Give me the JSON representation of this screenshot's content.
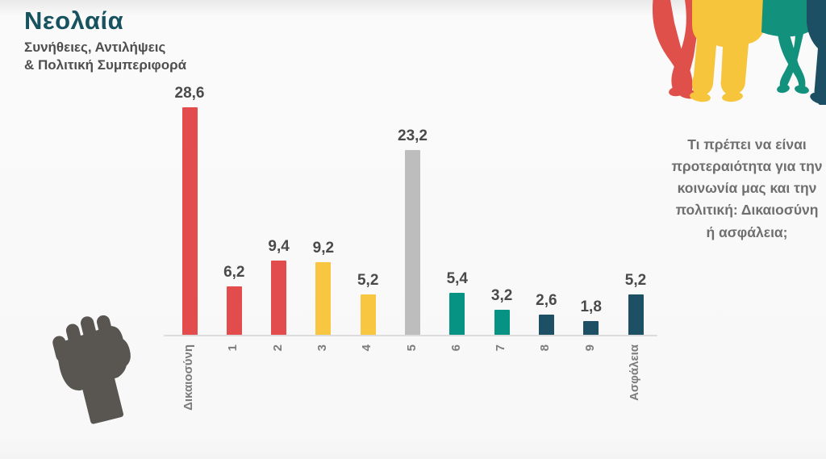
{
  "header": {
    "title": "Νεολαία",
    "subtitle_line1": "Συνήθειες, Αντιλήψεις",
    "subtitle_line2": "& Πολιτική Συμπεριφορά"
  },
  "question": "Τι πρέπει να είναι προτεραιότητα για την κοινωνία μας και την πολιτική: Δικαιοσύνη ή ασφάλεια;",
  "chart_data": {
    "type": "bar",
    "categories": [
      "Δικαιοσύνη",
      "1",
      "2",
      "3",
      "4",
      "5",
      "6",
      "7",
      "8",
      "9",
      "Ασφάλεια"
    ],
    "values": [
      28.6,
      6.2,
      9.4,
      9.2,
      5.2,
      23.2,
      5.4,
      3.2,
      2.6,
      1.8,
      5.2
    ],
    "value_labels": [
      "28,6",
      "6,2",
      "9,4",
      "9,2",
      "5,2",
      "23,2",
      "5,4",
      "3,2",
      "2,6",
      "1,8",
      "5,2"
    ],
    "bar_colors": [
      "#E24C4C",
      "#E24C4C",
      "#E24C4C",
      "#F8C640",
      "#F8C640",
      "#BDBDBD",
      "#079384",
      "#079384",
      "#1D5064",
      "#1D5064",
      "#1D5064"
    ],
    "title": "",
    "xlabel": "",
    "ylabel": "",
    "ylim": [
      0,
      30
    ],
    "grid": false,
    "legend": false,
    "decimal_separator": ","
  },
  "colors": {
    "title_teal": "#17535F",
    "subtitle_gray": "#4E4E4E",
    "question_gray": "#6F6F6F",
    "value_label_gray": "#4A4A4A",
    "axis_label_gray": "#7C7C7C",
    "axis_line_gray": "#DCDCDC",
    "fist_gray": "#595652",
    "silhouette_red": "#E0504B",
    "silhouette_yellow": "#F6C53C",
    "silhouette_teal": "#12917D",
    "silhouette_navy": "#1C4F63"
  },
  "icons": {
    "fist": "raised-fist-icon",
    "people": "youth-silhouettes-graphic"
  }
}
